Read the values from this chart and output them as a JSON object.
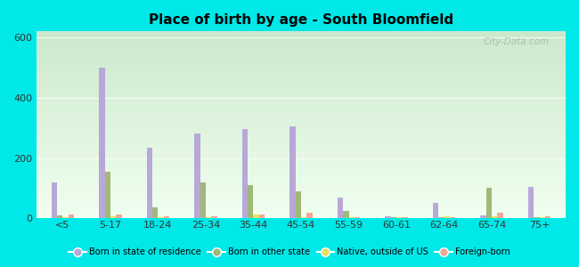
{
  "title": "Place of birth by age - South Bloomfield",
  "categories": [
    "<5",
    "5-17",
    "18-24",
    "25-34",
    "35-44",
    "45-54",
    "55-59",
    "60-61",
    "62-64",
    "65-74",
    "75+"
  ],
  "series": {
    "Born in state of residence": [
      120,
      500,
      235,
      280,
      295,
      305,
      70,
      8,
      50,
      10,
      105
    ],
    "Born in other state": [
      10,
      155,
      35,
      120,
      110,
      90,
      25,
      5,
      5,
      100,
      5
    ],
    "Native, outside of US": [
      5,
      8,
      5,
      5,
      12,
      5,
      5,
      3,
      8,
      8,
      5
    ],
    "Foreign-born": [
      12,
      12,
      8,
      8,
      12,
      18,
      5,
      3,
      5,
      18,
      8
    ]
  },
  "colors": {
    "Born in state of residence": "#b8a8d8",
    "Born in other state": "#a0b878",
    "Native, outside of US": "#e8e060",
    "Foreign-born": "#f0a898"
  },
  "ylim": [
    0,
    620
  ],
  "yticks": [
    0,
    200,
    400,
    600
  ],
  "outer_bg": "#00e8e8",
  "bar_width": 0.12,
  "watermark": "City-Data.com"
}
